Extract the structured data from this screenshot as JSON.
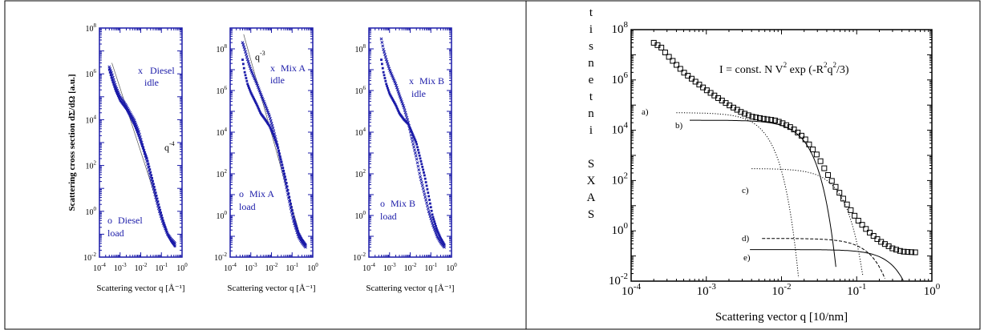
{
  "colors": {
    "blue": "#1a1aa8",
    "black": "#000000",
    "border": "#000000"
  },
  "chart_data": [
    {
      "type": "scatter",
      "panel": "left-1",
      "xscale": "log",
      "yscale": "log",
      "xlim": [
        0.0001,
        1
      ],
      "ylim": [
        0.01,
        100000000
      ],
      "xlabel": "Scattering vector q [Å⁻¹]",
      "ylabel": "Scattering cross section dΣ/dΩ [a.u.]",
      "x_ticks": [
        {
          "mant": "10",
          "exp": "-4"
        },
        {
          "mant": "10",
          "exp": "-3"
        },
        {
          "mant": "10",
          "exp": "-2"
        },
        {
          "mant": "10",
          "exp": "-1"
        },
        {
          "mant": "10",
          "exp": "0"
        }
      ],
      "y_ticks": [
        {
          "mant": "10",
          "exp": "8"
        },
        {
          "mant": "10",
          "exp": "6"
        },
        {
          "mant": "10",
          "exp": "4"
        },
        {
          "mant": "10",
          "exp": "2"
        },
        {
          "mant": "10",
          "exp": "0"
        },
        {
          "mant": "10",
          "exp": "-2"
        }
      ],
      "annotations": {
        "idle_marker": "x",
        "idle_name": "Diesel",
        "idle_state": "idle",
        "load_marker": "o",
        "load_name": "Diesel",
        "load_state": "load",
        "power_law": "q",
        "power_exp": "-4"
      },
      "series": [
        {
          "name": "idle",
          "marker": "x",
          "x": [
            0.0003,
            0.0004,
            0.0006,
            0.001,
            0.002,
            0.003,
            0.005,
            0.008,
            0.012,
            0.02,
            0.03,
            0.05,
            0.08,
            0.12,
            0.2,
            0.3,
            0.45
          ],
          "y": [
            2000000,
            1000000,
            300000,
            100000,
            40000,
            20000,
            9000,
            3000,
            800,
            150,
            30,
            5,
            1,
            0.3,
            0.1,
            0.06,
            0.04
          ]
        },
        {
          "name": "load",
          "marker": "o",
          "x": [
            0.0003,
            0.0004,
            0.0006,
            0.001,
            0.002,
            0.003,
            0.005,
            0.008,
            0.012,
            0.02,
            0.03,
            0.05,
            0.08,
            0.12,
            0.2,
            0.3,
            0.45
          ],
          "y": [
            1500000,
            600000,
            200000,
            70000,
            30000,
            15000,
            6000,
            2000,
            700,
            200,
            50,
            8,
            1.5,
            0.4,
            0.1,
            0.05,
            0.03
          ]
        }
      ],
      "reference_line": {
        "x": [
          0.0004,
          0.2
        ],
        "y": [
          3000000,
          0.1
        ]
      }
    },
    {
      "type": "scatter",
      "panel": "left-2",
      "xscale": "log",
      "yscale": "log",
      "xlim": [
        0.0001,
        1
      ],
      "ylim": [
        0.01,
        1000000000
      ],
      "xlabel": "Scattering vector q [Å⁻¹]",
      "x_ticks": [
        {
          "mant": "10",
          "exp": "-4"
        },
        {
          "mant": "10",
          "exp": "-3"
        },
        {
          "mant": "10",
          "exp": "-2"
        },
        {
          "mant": "10",
          "exp": "-1"
        },
        {
          "mant": "10",
          "exp": "0"
        }
      ],
      "y_ticks": [
        {
          "mant": "10",
          "exp": "8"
        },
        {
          "mant": "10",
          "exp": "6"
        },
        {
          "mant": "10",
          "exp": "4"
        },
        {
          "mant": "10",
          "exp": "2"
        },
        {
          "mant": "10",
          "exp": "0"
        },
        {
          "mant": "10",
          "exp": "-2"
        }
      ],
      "annotations": {
        "idle_marker": "x",
        "idle_name": "Mix A",
        "idle_state": "idle",
        "load_marker": "o",
        "load_name": "Mix A",
        "load_state": "load",
        "power_law": "q",
        "power_exp": "-3"
      },
      "series": [
        {
          "name": "idle",
          "marker": "x",
          "x": [
            0.0004,
            0.0005,
            0.0007,
            0.001,
            0.002,
            0.003,
            0.005,
            0.008,
            0.012,
            0.02,
            0.03,
            0.05,
            0.08,
            0.12,
            0.2,
            0.3,
            0.45
          ],
          "y": [
            200000000,
            100000000,
            30000000,
            10000000,
            2000000,
            700000,
            200000,
            60000,
            15000,
            2000,
            300,
            30,
            3,
            0.5,
            0.1,
            0.05,
            0.03
          ]
        },
        {
          "name": "load",
          "marker": "o",
          "x": [
            0.0004,
            0.0005,
            0.0007,
            0.001,
            0.002,
            0.003,
            0.005,
            0.008,
            0.012,
            0.02,
            0.03,
            0.05,
            0.08,
            0.12,
            0.2,
            0.3,
            0.45
          ],
          "y": [
            30000000,
            8000000,
            2000000,
            800000,
            200000,
            80000,
            40000,
            20000,
            8000,
            2000,
            400,
            50,
            5,
            0.8,
            0.15,
            0.07,
            0.04
          ]
        }
      ],
      "reference_line": {
        "x": [
          0.00045,
          0.3
        ],
        "y": [
          500000000,
          0.05
        ]
      }
    },
    {
      "type": "scatter",
      "panel": "left-3",
      "xscale": "log",
      "yscale": "log",
      "xlim": [
        0.0001,
        1
      ],
      "ylim": [
        0.01,
        1000000000
      ],
      "xlabel": "Scattering vector q [Å⁻¹]",
      "x_ticks": [
        {
          "mant": "10",
          "exp": "-4"
        },
        {
          "mant": "10",
          "exp": "-3"
        },
        {
          "mant": "10",
          "exp": "-2"
        },
        {
          "mant": "10",
          "exp": "-1"
        },
        {
          "mant": "10",
          "exp": "0"
        }
      ],
      "y_ticks": [
        {
          "mant": "10",
          "exp": "8"
        },
        {
          "mant": "10",
          "exp": "6"
        },
        {
          "mant": "10",
          "exp": "4"
        },
        {
          "mant": "10",
          "exp": "2"
        },
        {
          "mant": "10",
          "exp": "0"
        },
        {
          "mant": "10",
          "exp": "-2"
        }
      ],
      "annotations": {
        "idle_marker": "x",
        "idle_name": "Mix B",
        "idle_state": "idle",
        "load_marker": "o",
        "load_name": "Mix B",
        "load_state": "load"
      },
      "series": [
        {
          "name": "idle",
          "marker": "x",
          "x": [
            0.0004,
            0.0005,
            0.0007,
            0.001,
            0.002,
            0.003,
            0.005,
            0.008,
            0.012,
            0.02,
            0.03,
            0.05,
            0.08,
            0.12,
            0.2,
            0.3,
            0.45
          ],
          "y": [
            300000000,
            100000000,
            30000000,
            10000000,
            2000000,
            600000,
            150000,
            30000,
            5000,
            600,
            80,
            10,
            1.5,
            0.4,
            0.1,
            0.05,
            0.03
          ]
        },
        {
          "name": "load",
          "marker": "o",
          "x": [
            0.0004,
            0.0005,
            0.0007,
            0.001,
            0.002,
            0.003,
            0.005,
            0.008,
            0.012,
            0.02,
            0.03,
            0.05,
            0.08,
            0.12,
            0.2,
            0.3,
            0.45
          ],
          "y": [
            30000000,
            8000000,
            2000000,
            700000,
            200000,
            80000,
            40000,
            25000,
            10000,
            3000,
            600,
            80,
            8,
            1,
            0.2,
            0.08,
            0.04
          ]
        }
      ]
    },
    {
      "type": "scatter",
      "panel": "right",
      "xscale": "log",
      "yscale": "log",
      "xlim": [
        0.0001,
        1
      ],
      "ylim": [
        0.01,
        100000000
      ],
      "xlabel": "Scattering vector q [10/nm]",
      "ylabel_letters": [
        "t",
        "i",
        "s",
        "n",
        "e",
        "t",
        "n",
        "i",
        "",
        "S",
        "X",
        "A",
        "S"
      ],
      "formula": {
        "a": "I = const. N V",
        "b": "2",
        "c": " exp (-R",
        "d": "2",
        "e": "q",
        "f": "2",
        "g": "/3)"
      },
      "x_ticks": [
        {
          "mant": "10",
          "exp": "-4"
        },
        {
          "mant": "10",
          "exp": "-3"
        },
        {
          "mant": "10",
          "exp": "-2"
        },
        {
          "mant": "10",
          "exp": "-1"
        },
        {
          "mant": "10",
          "exp": "0"
        }
      ],
      "y_ticks": [
        {
          "mant": "10",
          "exp": "8"
        },
        {
          "mant": "10",
          "exp": "6"
        },
        {
          "mant": "10",
          "exp": "4"
        },
        {
          "mant": "10",
          "exp": "2"
        },
        {
          "mant": "10",
          "exp": "0"
        },
        {
          "mant": "10",
          "exp": "-2"
        }
      ],
      "curve_labels": [
        "a)",
        "b)",
        "c)",
        "d)",
        "e)"
      ],
      "measured": {
        "x": [
          0.0002,
          0.00025,
          0.0003,
          0.0004,
          0.0005,
          0.0007,
          0.001,
          0.0014,
          0.002,
          0.003,
          0.004,
          0.006,
          0.008,
          0.01,
          0.014,
          0.02,
          0.03,
          0.04,
          0.06,
          0.08,
          0.1,
          0.14,
          0.2,
          0.3,
          0.4,
          0.6
        ],
        "y": [
          30000000,
          20000000,
          10000000,
          4000000,
          2000000,
          900000,
          400000,
          200000,
          100000,
          50000,
          35000,
          28000,
          25000,
          20000,
          12000,
          5000,
          1000,
          200,
          30,
          8,
          3,
          1,
          0.4,
          0.2,
          0.15,
          0.14
        ]
      },
      "components": [
        {
          "label": "a)",
          "style": "dotted",
          "I0": 50000,
          "Rg": 400
        },
        {
          "label": "b)",
          "style": "solid",
          "I0": 25000,
          "Rg": 120,
          "xmin": 0.0006
        },
        {
          "label": "c)",
          "style": "dotted",
          "I0": 300,
          "Rg": 45,
          "xmin": 0.004
        },
        {
          "label": "d)",
          "style": "dashed",
          "I0": 0.5,
          "Rg": 14,
          "xmin": 0.0055
        },
        {
          "label": "e)",
          "style": "solid",
          "I0": 0.18,
          "Rg": 7,
          "xmin": 0.0038
        }
      ]
    }
  ]
}
